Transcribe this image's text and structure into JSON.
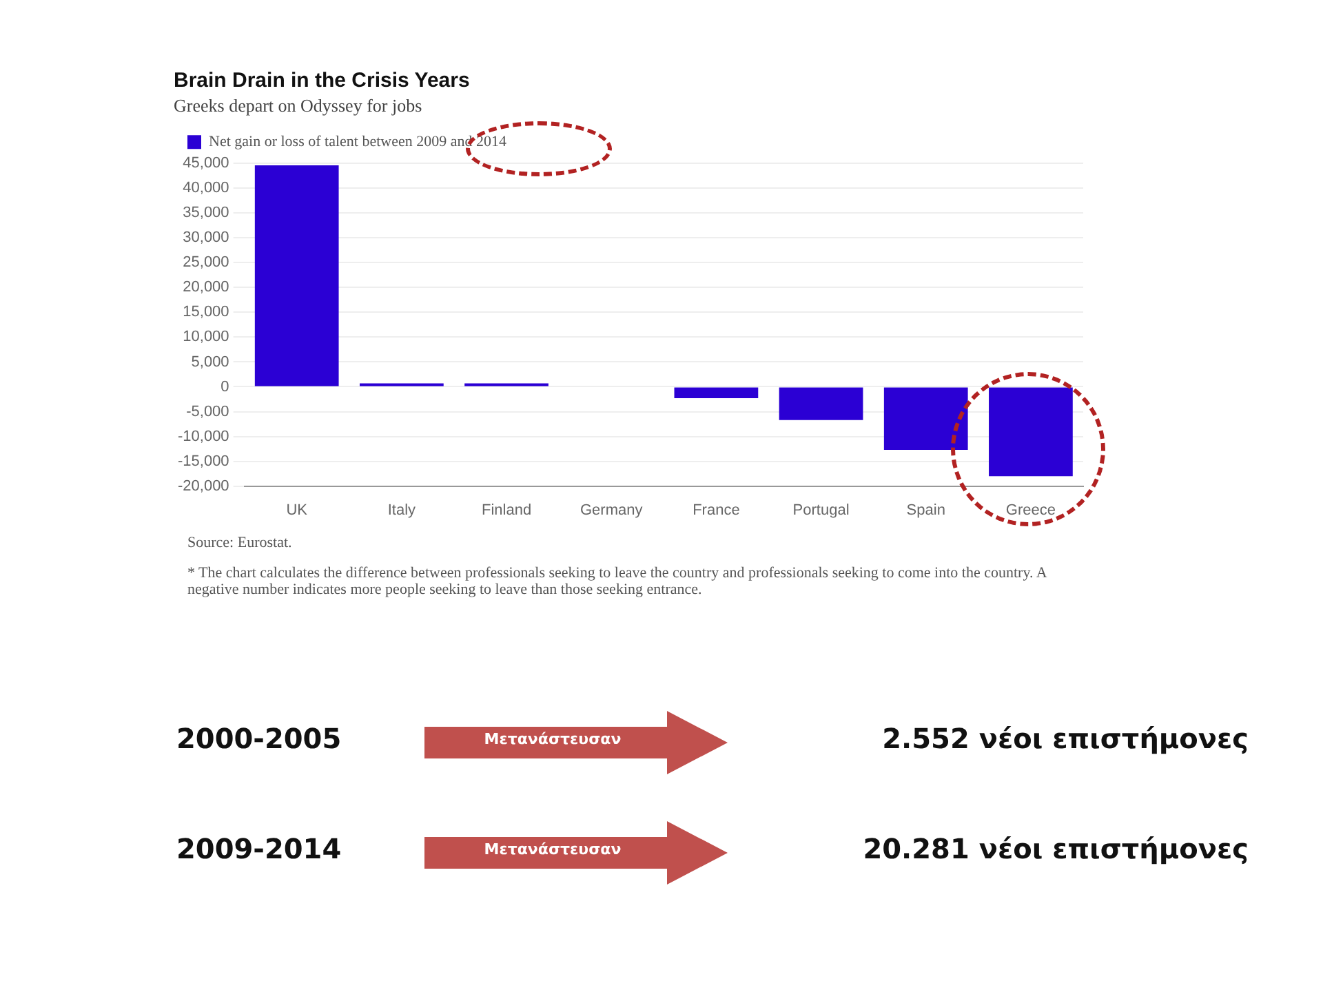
{
  "chart_data": [
    {
      "type": "bar",
      "title": "Brain Drain in the Crisis Years",
      "subtitle": "Greeks depart on Odyssey for jobs",
      "categories": [
        "UK",
        "Italy",
        "Finland",
        "Germany",
        "France",
        "Portugal",
        "Spain",
        "Greece"
      ],
      "series": [
        {
          "name": "Net gain or loss of talent between 2009 and 2014",
          "color": "#2b00d4",
          "values": [
            44600,
            700,
            700,
            0,
            -2300,
            -6700,
            -12700,
            -18000
          ]
        }
      ],
      "ylim": [
        -20000,
        45000
      ],
      "yticks": [
        {
          "value": -20000,
          "label": "-20,000"
        },
        {
          "value": -15000,
          "label": "-15,000"
        },
        {
          "value": -10000,
          "label": "-10,000"
        },
        {
          "value": -5000,
          "label": "-5,000"
        },
        0,
        {
          "value": 5000,
          "label": "5,000"
        },
        {
          "value": 10000,
          "label": "10,000"
        },
        {
          "value": 15000,
          "label": "15,000"
        },
        {
          "value": 20000,
          "label": "20,000"
        },
        {
          "value": 25000,
          "label": "25,000"
        },
        {
          "value": 30000,
          "label": "30,000"
        },
        {
          "value": 35000,
          "label": "35,000"
        },
        {
          "value": 40000,
          "label": "40,000"
        },
        {
          "value": 45000,
          "label": "45,000"
        }
      ],
      "grid": "y",
      "legend": "top left",
      "annotations": [
        "Source: Eurostat.",
        "* The chart calculates the difference between professionals seeking to leave the country and professionals seeking to come into the country. A negative number indicates more people seeking to leave than those seeking entrance."
      ]
    },
    {
      "type": "other",
      "annotations": [
        "2000-2005",
        "Μετανάστευσαν",
        "2.552  νέοι επιστήμονες",
        "2009-2014",
        "Μετανάστευσαν",
        "20.281 νέοι επιστήμονες"
      ]
    }
  ]
}
